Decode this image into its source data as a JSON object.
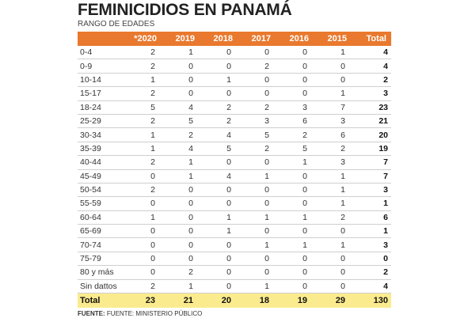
{
  "title": "FEMINICIDIOS EN PANAMÁ",
  "subtitle": "RANGO DE EDADES",
  "header_color": "#e8792e",
  "footer_row_color": "#fbeb8f",
  "columns": [
    "",
    "*2020",
    "2019",
    "2018",
    "2017",
    "2016",
    "2015",
    "Total"
  ],
  "rows": [
    {
      "range": "0-4",
      "values": [
        "2",
        "1",
        "0",
        "0",
        "0",
        "1",
        "4"
      ]
    },
    {
      "range": "0-9",
      "values": [
        "2",
        "0",
        "0",
        "2",
        "0",
        "0",
        "4"
      ]
    },
    {
      "range": "10-14",
      "values": [
        "1",
        "0",
        "1",
        "0",
        "0",
        "0",
        "2"
      ]
    },
    {
      "range": "15-17",
      "values": [
        "2",
        "0",
        "0",
        "0",
        "0",
        "1",
        "3"
      ]
    },
    {
      "range": "18-24",
      "values": [
        "5",
        "4",
        "2",
        "2",
        "3",
        "7",
        "23"
      ]
    },
    {
      "range": "25-29",
      "values": [
        "2",
        "5",
        "2",
        "3",
        "6",
        "3",
        "21"
      ]
    },
    {
      "range": "30-34",
      "values": [
        "1",
        "2",
        "4",
        "5",
        "2",
        "6",
        "20"
      ]
    },
    {
      "range": "35-39",
      "values": [
        "1",
        "4",
        "5",
        "2",
        "5",
        "2",
        "19"
      ]
    },
    {
      "range": "40-44",
      "values": [
        "2",
        "1",
        "0",
        "0",
        "1",
        "3",
        "7"
      ]
    },
    {
      "range": "45-49",
      "values": [
        "0",
        "1",
        "4",
        "1",
        "0",
        "1",
        "7"
      ]
    },
    {
      "range": "50-54",
      "values": [
        "2",
        "0",
        "0",
        "0",
        "0",
        "1",
        "3"
      ]
    },
    {
      "range": "55-59",
      "values": [
        "0",
        "0",
        "0",
        "0",
        "0",
        "1",
        "1"
      ]
    },
    {
      "range": "60-64",
      "values": [
        "1",
        "0",
        "1",
        "1",
        "1",
        "2",
        "6"
      ]
    },
    {
      "range": "65-69",
      "values": [
        "0",
        "0",
        "1",
        "0",
        "0",
        "0",
        "1"
      ]
    },
    {
      "range": "70-74",
      "values": [
        "0",
        "0",
        "0",
        "1",
        "1",
        "1",
        "3"
      ]
    },
    {
      "range": "75-79",
      "values": [
        "0",
        "0",
        "0",
        "0",
        "0",
        "0",
        "0"
      ]
    },
    {
      "range": "80 y más",
      "values": [
        "0",
        "2",
        "0",
        "0",
        "0",
        "0",
        "2"
      ]
    },
    {
      "range": "Sin dattos",
      "values": [
        "2",
        "1",
        "0",
        "1",
        "0",
        "0",
        "4"
      ]
    }
  ],
  "totals": {
    "label": "Total",
    "values": [
      "23",
      "21",
      "20",
      "18",
      "19",
      "29",
      "130"
    ]
  },
  "source": {
    "label": "FUENTE:",
    "text": "FUENTE: MINISTERIO PÚBLICO"
  }
}
